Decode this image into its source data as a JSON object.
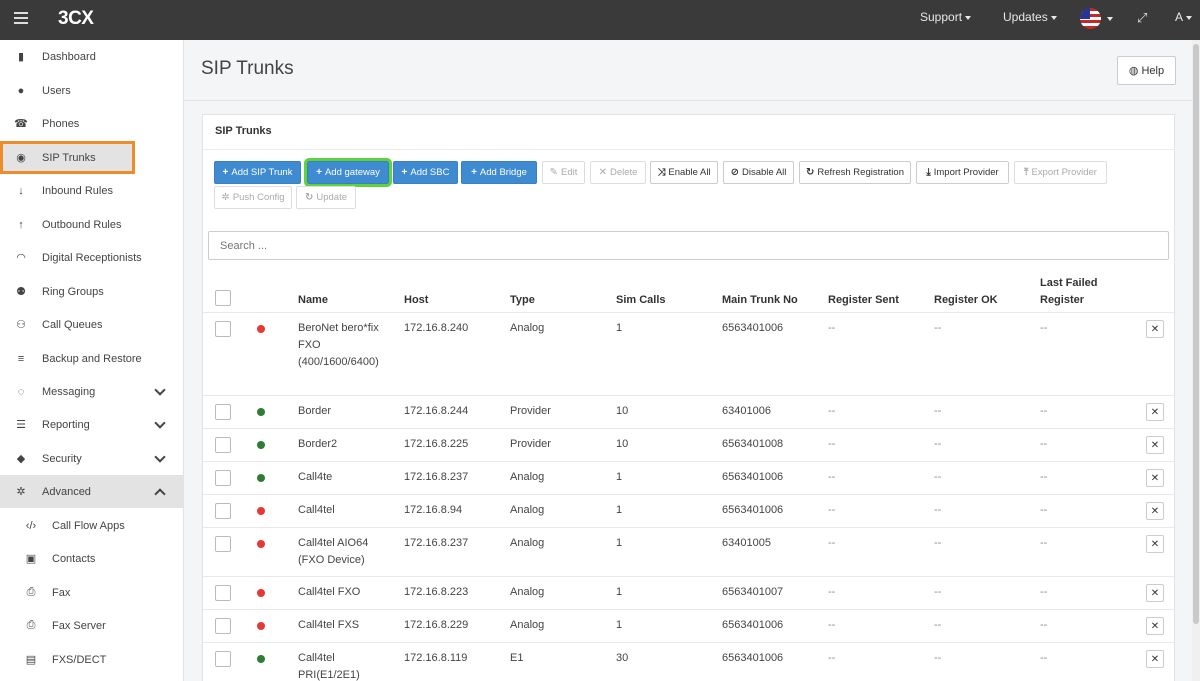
{
  "app": {
    "logo": "3CX"
  },
  "topbar": {
    "support": "Support",
    "updates": "Updates",
    "user_initial": "A"
  },
  "sidebar": {
    "items": [
      {
        "label": "Dashboard",
        "icon": "bar-chart-icon",
        "glyph": "▮"
      },
      {
        "label": "Users",
        "icon": "user-icon",
        "glyph": "●"
      },
      {
        "label": "Phones",
        "icon": "phone-icon",
        "glyph": "☎"
      },
      {
        "label": "SIP Trunks",
        "icon": "globe-icon",
        "glyph": "◉"
      },
      {
        "label": "Inbound Rules",
        "icon": "arrow-down-icon",
        "glyph": "↓"
      },
      {
        "label": "Outbound Rules",
        "icon": "arrow-up-icon",
        "glyph": "↑"
      },
      {
        "label": "Digital Receptionists",
        "icon": "headset-icon",
        "glyph": "◠"
      },
      {
        "label": "Ring Groups",
        "icon": "group-icon",
        "glyph": "⚉"
      },
      {
        "label": "Call Queues",
        "icon": "queue-icon",
        "glyph": "⚇"
      },
      {
        "label": "Backup and Restore",
        "icon": "database-icon",
        "glyph": "≡"
      },
      {
        "label": "Messaging",
        "icon": "chat-icon",
        "glyph": "◌"
      },
      {
        "label": "Reporting",
        "icon": "list-icon",
        "glyph": "☰"
      },
      {
        "label": "Security",
        "icon": "shield-icon",
        "glyph": "◆"
      },
      {
        "label": "Advanced",
        "icon": "gear-icon",
        "glyph": "✲"
      },
      {
        "label": "Call Flow Apps",
        "icon": "code-icon",
        "glyph": "‹/›"
      },
      {
        "label": "Contacts",
        "icon": "address-book-icon",
        "glyph": "▣"
      },
      {
        "label": "Fax",
        "icon": "fax-icon",
        "glyph": "⎙"
      },
      {
        "label": "Fax Server",
        "icon": "fax-server-icon",
        "glyph": "⎙"
      },
      {
        "label": "FXS/DECT",
        "icon": "device-icon",
        "glyph": "▤"
      }
    ]
  },
  "page": {
    "title": "SIP Trunks",
    "help": "Help",
    "panel_title": "SIP Trunks"
  },
  "toolbar": {
    "add_sip_trunk": "Add SIP Trunk",
    "add_gateway": "Add gateway",
    "add_sbc": "Add SBC",
    "add_bridge": "Add Bridge",
    "edit": "Edit",
    "delete": "Delete",
    "enable_all": "Enable All",
    "disable_all": "Disable All",
    "refresh_registration": "Refresh Registration",
    "import_provider": "Import Provider",
    "export_provider": "Export Provider",
    "push_config": "Push Config",
    "update": "Update"
  },
  "search": {
    "placeholder": "Search ..."
  },
  "table": {
    "headers": {
      "name": "Name",
      "host": "Host",
      "type": "Type",
      "sim_calls": "Sim Calls",
      "main_trunk_no": "Main Trunk No",
      "register_sent": "Register Sent",
      "register_ok": "Register OK",
      "last_failed_1": "Last Failed",
      "last_failed_2": "Register"
    },
    "empty": "--",
    "colors": {
      "online": "#2e7d32",
      "offline": "#e53935"
    },
    "rows": [
      {
        "name": "BeroNet bero*fix FXO (400/1600/6400)",
        "host": "172.16.8.240",
        "type": "Analog",
        "sim": "1",
        "main": "6563401006",
        "status": "offline"
      },
      {
        "name": "Border",
        "host": "172.16.8.244",
        "type": "Provider",
        "sim": "10",
        "main": "63401006",
        "status": "online"
      },
      {
        "name": "Border2",
        "host": "172.16.8.225",
        "type": "Provider",
        "sim": "10",
        "main": "6563401008",
        "status": "online"
      },
      {
        "name": "Call4te",
        "host": "172.16.8.237",
        "type": "Analog",
        "sim": "1",
        "main": "6563401006",
        "status": "online"
      },
      {
        "name": "Call4tel",
        "host": "172.16.8.94",
        "type": "Analog",
        "sim": "1",
        "main": "6563401006",
        "status": "offline"
      },
      {
        "name": "Call4tel AIO64 (FXO Device)",
        "host": "172.16.8.237",
        "type": "Analog",
        "sim": "1",
        "main": "63401005",
        "status": "offline"
      },
      {
        "name": "Call4tel FXO",
        "host": "172.16.8.223",
        "type": "Analog",
        "sim": "1",
        "main": "6563401007",
        "status": "offline"
      },
      {
        "name": "Call4tel FXS",
        "host": "172.16.8.229",
        "type": "Analog",
        "sim": "1",
        "main": "6563401006",
        "status": "offline"
      },
      {
        "name": "Call4tel PRI(E1/2E1)",
        "host": "172.16.8.119",
        "type": "E1",
        "sim": "30",
        "main": "6563401006",
        "status": "online"
      }
    ]
  }
}
